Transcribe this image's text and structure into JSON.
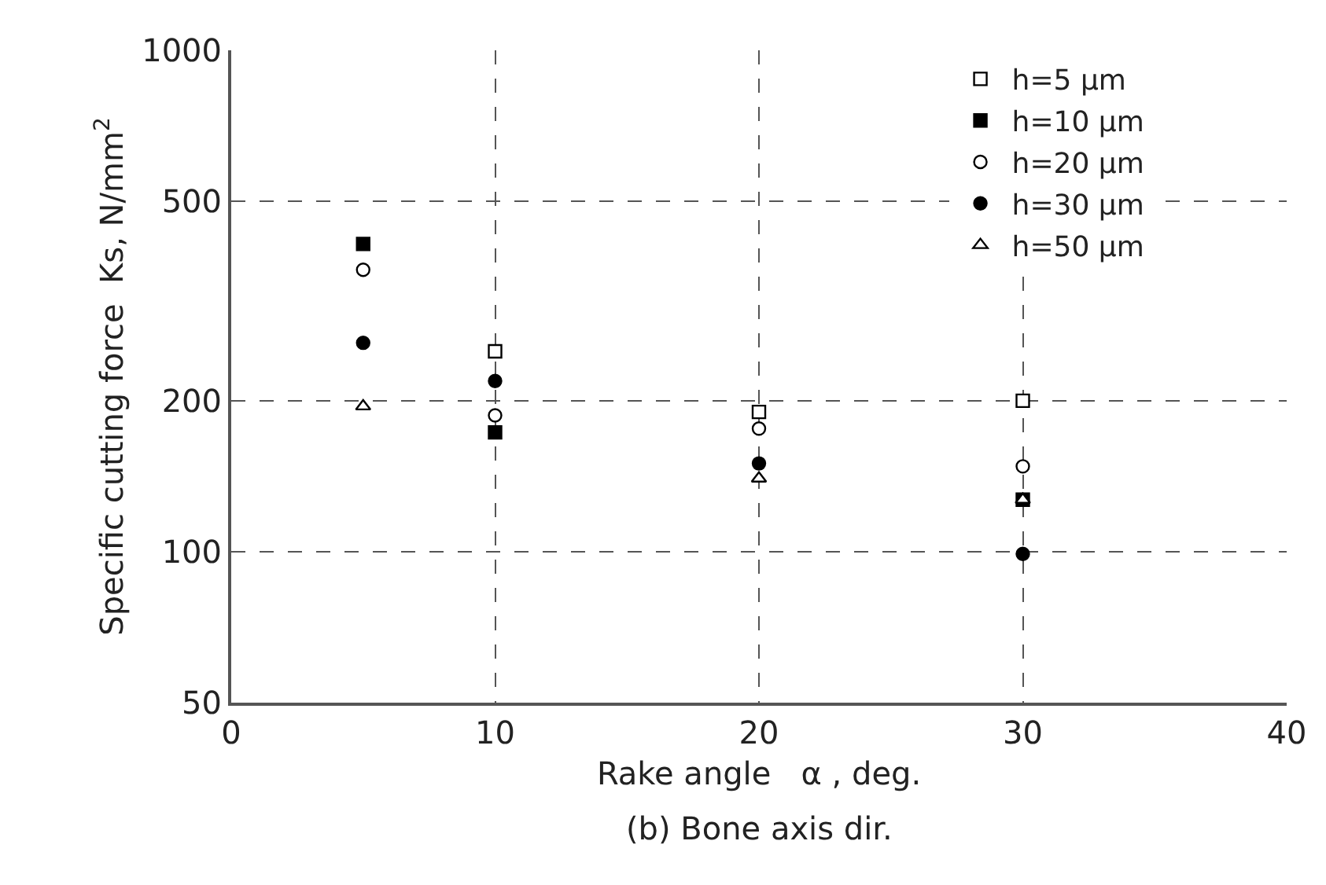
{
  "chart_data": {
    "type": "scatter",
    "xlabel": "Rake angle   α , deg.",
    "ylabel": "Specific cutting force  Ks, N/mm$^{2}$",
    "annotations": [
      "(b) Bone axis dir."
    ],
    "x": [
      5,
      10,
      20,
      30
    ],
    "series": [
      {
        "name": "h=5 μm",
        "color": "#ffffff",
        "marker": "square",
        "values": [
          null,
          251,
          190,
          200
        ]
      },
      {
        "name": "h=10 μm",
        "color": "#000000",
        "marker": "square",
        "values": [
          411,
          173,
          null,
          127
        ]
      },
      {
        "name": "h=20 μm",
        "color": "#ffffff",
        "marker": "circle",
        "values": [
          365,
          187,
          176,
          148
        ]
      },
      {
        "name": "h=30 μm",
        "color": "#000000",
        "marker": "circle",
        "values": [
          261,
          219,
          150,
          99
        ]
      },
      {
        "name": "h=50 μm",
        "color": "#ffffff",
        "marker": "triangle",
        "values": [
          195,
          null,
          140,
          127
        ]
      }
    ],
    "log": "y",
    "xlim": [
      0,
      40
    ],
    "xticks": [
      0,
      10,
      20,
      30,
      40
    ],
    "ylim": [
      50,
      1000
    ],
    "yticks": [
      50,
      100,
      200,
      500,
      1000
    ],
    "grid": true,
    "legend": "top right"
  }
}
